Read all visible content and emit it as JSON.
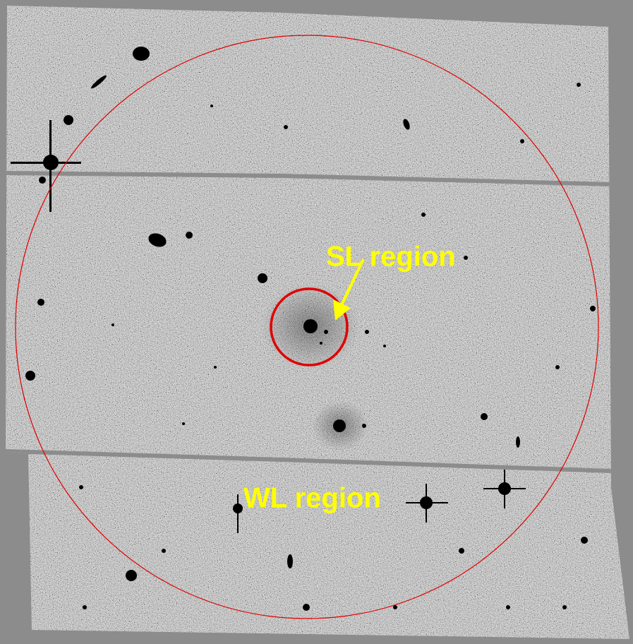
{
  "labels": {
    "sl_region": "SL region",
    "wl_region": "WL region"
  }
}
